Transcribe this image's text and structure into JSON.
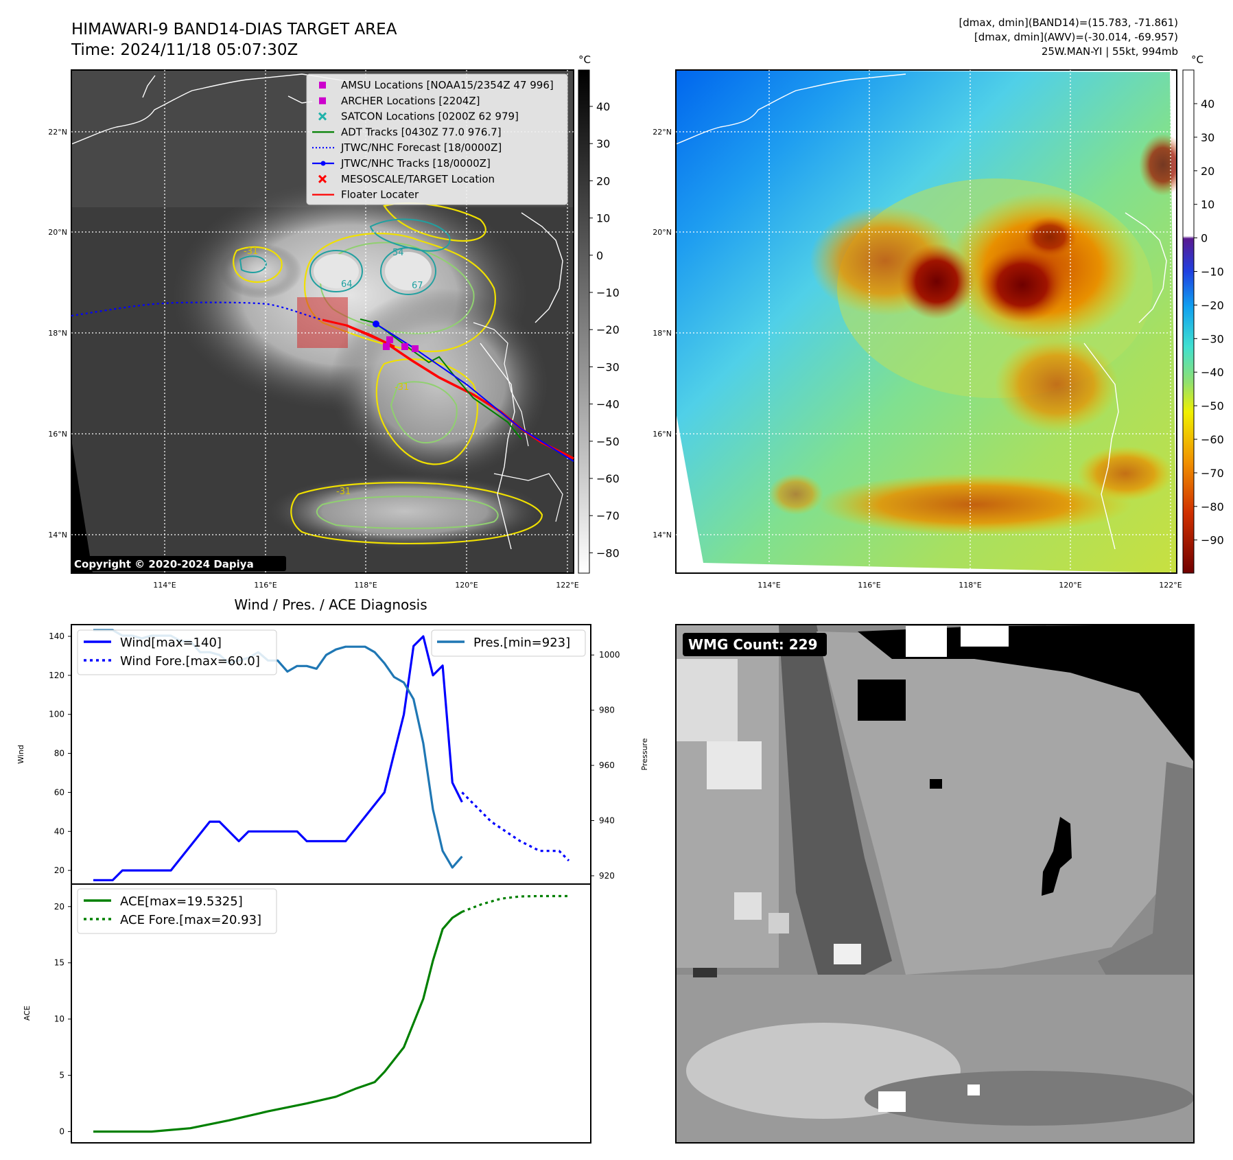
{
  "header": {
    "title_line1": "HIMAWARI-9 BAND14-DIAS TARGET AREA",
    "title_line2": "Time: 2024/11/18 05:07:30Z",
    "info_line1": "[dmax, dmin](BAND14)=(15.783, -71.861)",
    "info_line2": "[dmax, dmin](AWV)=(-30.014, -69.957)",
    "info_line3": "25W.MAN-YI | 55kt, 994mb"
  },
  "map": {
    "lat_labels": [
      "22°N",
      "20°N",
      "18°N",
      "16°N",
      "14°N"
    ],
    "lon_labels": [
      "114°E",
      "116°E",
      "118°E",
      "120°E",
      "122°E"
    ],
    "copyright": "Copyright © 2020-2024 Dapiya",
    "contour_labels": [
      "64",
      "54",
      "67",
      "-31",
      "-31",
      "-31"
    ],
    "legend": [
      {
        "label": "AMSU Locations [NOAA15/2354Z 47 996]",
        "color": "#cc00cc"
      },
      {
        "label": "ARCHER Locations [2204Z]",
        "color": "#cc00cc"
      },
      {
        "label": "SATCON Locations [0200Z 62 979]",
        "color": "#20b2aa"
      },
      {
        "label": "ADT Tracks [0430Z 77.0 976.7]",
        "color": "#008000"
      },
      {
        "label": "JTWC/NHC Forecast [18/0000Z]",
        "color": "#0000ff"
      },
      {
        "label": "JTWC/NHC Tracks [18/0000Z]",
        "color": "#0000ff"
      },
      {
        "label": "MESOSCALE/TARGET Location",
        "color": "#ff0000"
      },
      {
        "label": "Floater Locater",
        "color": "#ff0000"
      }
    ]
  },
  "colorbars": {
    "unit": "°C",
    "left_ticks": [
      "40",
      "30",
      "20",
      "10",
      "0",
      "−10",
      "−20",
      "−30",
      "−40",
      "−50",
      "−60",
      "−70",
      "−80"
    ],
    "right_ticks": [
      "40",
      "30",
      "20",
      "10",
      "0",
      "−10",
      "−20",
      "−30",
      "−40",
      "−50",
      "−60",
      "−70",
      "−80",
      "−90"
    ]
  },
  "wmg": {
    "label": "WMG Count: 229"
  },
  "chart_data": [
    {
      "type": "line",
      "title": "Wind / Pres. / ACE Diagnosis",
      "ylabel": "Wind",
      "y2label": "Pressure",
      "ylim": [
        13,
        146
      ],
      "y2lim": [
        917,
        1011
      ],
      "yticks": [
        20,
        40,
        60,
        80,
        100,
        120,
        140
      ],
      "y2ticks": [
        920,
        940,
        960,
        980,
        1000
      ],
      "series": [
        {
          "name": "Wind[max=140]",
          "color": "#0000ff",
          "style": "solid",
          "x": [
            0,
            2,
            3,
            8,
            12,
            13,
            15,
            16,
            17,
            21,
            22,
            26,
            30,
            31,
            32,
            33,
            34,
            35,
            36,
            37,
            38
          ],
          "values": [
            15,
            15,
            20,
            20,
            45,
            45,
            35,
            40,
            40,
            40,
            35,
            35,
            60,
            80,
            100,
            135,
            140,
            120,
            125,
            65,
            55
          ]
        },
        {
          "name": "Wind Fore.[max=60.0]",
          "color": "#0000ff",
          "style": "dotted",
          "x": [
            38,
            41,
            44,
            46,
            48,
            49
          ],
          "values": [
            60,
            45,
            35,
            30,
            30,
            25
          ]
        },
        {
          "name": "Pres.[min=923]",
          "color": "#1f77b4",
          "style": "solid",
          "x": [
            0,
            2,
            3,
            4,
            5,
            6,
            7,
            8,
            9,
            10,
            11,
            12,
            13,
            14,
            15,
            16,
            17,
            18,
            19,
            20,
            21,
            22,
            23,
            24,
            25,
            26,
            27,
            28,
            29,
            30,
            31,
            32,
            33,
            34,
            35,
            36,
            37,
            38
          ],
          "values": [
            1009,
            1009,
            1007,
            1007,
            1006,
            1007,
            1007,
            1007,
            1005,
            1005,
            1001,
            1001,
            1000,
            997,
            998,
            999,
            1001,
            998,
            998,
            994,
            996,
            996,
            995,
            1000,
            1002,
            1003,
            1003,
            1003,
            1001,
            997,
            992,
            990,
            984,
            968,
            944,
            929,
            923,
            927
          ]
        }
      ]
    },
    {
      "type": "line",
      "ylabel": "ACE",
      "ylim": [
        -1,
        22
      ],
      "yticks": [
        0,
        5,
        10,
        15,
        20
      ],
      "series": [
        {
          "name": "ACE[max=19.5325]",
          "color": "#008000",
          "style": "solid",
          "x": [
            0,
            6,
            10,
            14,
            18,
            22,
            25,
            27,
            29,
            30,
            32,
            34,
            35,
            36,
            37,
            38
          ],
          "values": [
            0,
            0,
            0.3,
            1.0,
            1.8,
            2.5,
            3.1,
            3.8,
            4.4,
            5.3,
            7.5,
            11.8,
            15.2,
            18.0,
            19.0,
            19.5325
          ]
        },
        {
          "name": "ACE Fore.[max=20.93]",
          "color": "#008000",
          "style": "dotted",
          "x": [
            38,
            40,
            42,
            44,
            46,
            49
          ],
          "values": [
            19.5325,
            20.2,
            20.7,
            20.9,
            20.93,
            20.93
          ]
        }
      ]
    }
  ]
}
